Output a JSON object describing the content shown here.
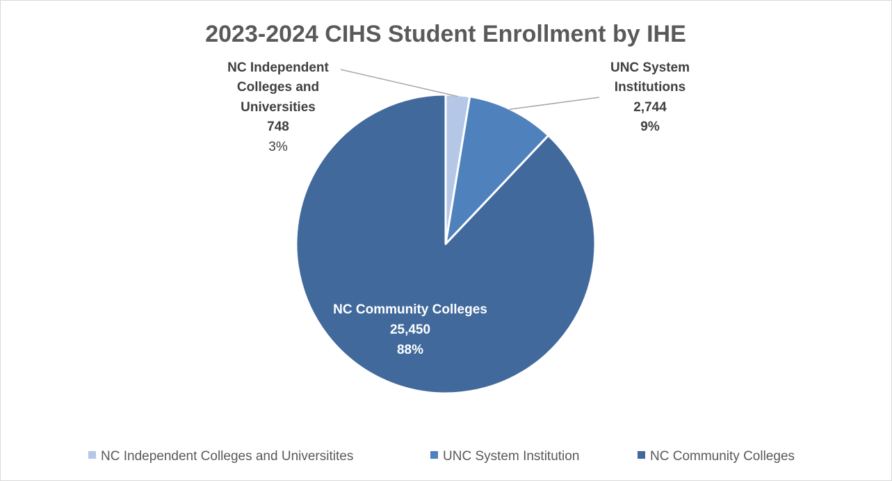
{
  "chart_data": {
    "type": "pie",
    "title": "2023-2024 CIHS Student Enrollment by IHE",
    "slices": [
      {
        "legend": "NC Independent Colleges and Universitites",
        "label_lines": [
          "NC Independent",
          "Colleges and",
          "Universities"
        ],
        "value": 748,
        "value_text": "748",
        "percent_text": "3%",
        "color": "#b4c7e7"
      },
      {
        "legend": "UNC System Institution",
        "label_lines": [
          "UNC System",
          "Institutions"
        ],
        "value": 2744,
        "value_text": "2,744",
        "percent_text": "9%",
        "color": "#4f81bd"
      },
      {
        "legend": "NC Community Colleges",
        "label_lines": [
          "NC Community Colleges"
        ],
        "value": 25450,
        "value_text": "25,450",
        "percent_text": "88%",
        "color": "#41699c"
      }
    ],
    "legend_position": "bottom",
    "start_angle_deg": 0,
    "direction": "clockwise"
  }
}
